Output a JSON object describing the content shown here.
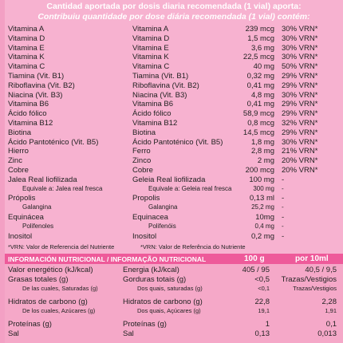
{
  "header": {
    "es": "Cantidad aportada por dosis diaria recomendada (1 vial) aporta:",
    "pt": "Contribuiu quantidade por dose diária recomendada (1 vial) contém:"
  },
  "vitamins": [
    {
      "es": "Vitamina A",
      "pt": "Vitamina A",
      "qty": "239 mcg",
      "pct": "30% VRN*"
    },
    {
      "es": "Vitamina D",
      "pt": "Vitamina D",
      "qty": "1,5 mcg",
      "pct": "30% VRN*"
    },
    {
      "es": "Vitamina E",
      "pt": "Vitamina E",
      "qty": "3,6 mg",
      "pct": "30% VRN*"
    },
    {
      "es": "Vitamina K",
      "pt": "Vitamina K",
      "qty": "22,5 mcg",
      "pct": "30% VRN*"
    },
    {
      "es": "Vitamina C",
      "pt": "Vitamina C",
      "qty": "40 mg",
      "pct": "50% VRN*"
    },
    {
      "es": "Tiamina (Vit. B1)",
      "pt": "Tiamina (Vit. B1)",
      "qty": "0,32 mg",
      "pct": "29% VRN*"
    },
    {
      "es": "Riboflavina (Vit. B2)",
      "pt": "Riboflavina (Vit. B2)",
      "qty": "0,41 mg",
      "pct": "29% VRN*"
    },
    {
      "es": "Niacina (Vit. B3)",
      "pt": "Niacina (Vit. B3)",
      "qty": "4,8 mg",
      "pct": "30% VRN*"
    },
    {
      "es": "Vitamina B6",
      "pt": "Vitamina B6",
      "qty": "0,41 mg",
      "pct": "29% VRN*"
    },
    {
      "es": "Ácido fólico",
      "pt": "Ácido fólico",
      "qty": "58,9 mcg",
      "pct": "29% VRN*"
    },
    {
      "es": "Vitamina B12",
      "pt": "Vitamina B12",
      "qty": "0,8 mcg",
      "pct": "32% VRN*"
    },
    {
      "es": "Biotina",
      "pt": "Biotina",
      "qty": "14,5 mcg",
      "pct": "29% VRN*"
    },
    {
      "es": "Ácido Pantoténico (Vit. B5)",
      "pt": "Ácido Pantoténico (Vit. B5)",
      "qty": "1,8 mg",
      "pct": "30% VRN*"
    },
    {
      "es": "Hierro",
      "pt": "Ferro",
      "qty": "2,8 mg",
      "pct": "21% VRN*"
    },
    {
      "es": "Zinc",
      "pt": "Zinco",
      "qty": "2 mg",
      "pct": "20% VRN*"
    },
    {
      "es": "Cobre",
      "pt": "Cobre",
      "qty": "200 mcg",
      "pct": "20% VRN*"
    },
    {
      "es": "Jalea Real liofilizada",
      "pt": "Geleia Real liofilizada",
      "qty": "100 mg",
      "pct": "-"
    },
    {
      "es": "Equivale a: Jalea real fresca",
      "pt": "Equivale a: Geleia real fresca",
      "qty": "300 mg",
      "pct": "-",
      "sub": true
    },
    {
      "es": "Própolis",
      "pt": "Propolis",
      "qty": "0,13 ml",
      "pct": "-"
    },
    {
      "es": "Galangina",
      "pt": "Galangina",
      "qty": "25,2 mg",
      "pct": "-",
      "sub": true
    },
    {
      "es": "Equinácea",
      "pt": "Equinacea",
      "qty": "10mg",
      "pct": "-"
    },
    {
      "es": "Polifenoles",
      "pt": "Polifenóis",
      "qty": "0,4 mg",
      "pct": "-",
      "sub": true
    },
    {
      "es": "Inositol",
      "pt": "Inositol",
      "qty": "0,2 mg",
      "pct": "-"
    }
  ],
  "footnote": {
    "es": "*VRN: Valor de Referencia del Nutriente",
    "pt": "*VRN: Valor de Referência do Nutriente"
  },
  "nutrition": {
    "title": "INFORMACIÓN NUTRICIONAL / INFORMAÇÃO NUTRICIONAL",
    "col_100g": "100 g",
    "col_10ml": "por 10ml",
    "rows": [
      {
        "es": "Valor energético (kJ/kcal)",
        "pt": "Energia (kJ/kcal)",
        "v100": "405 / 95",
        "v10": "40,5 / 9,5"
      },
      {
        "es": "Grasas totales (g)",
        "pt": "Gorduras totais (g)",
        "v100": "<0,5",
        "v10": "Trazas/Vestigios"
      },
      {
        "es": "De las cuales, Saturadas (g)",
        "pt": "Dos quais, saturadas (g)",
        "v100": "<0,1",
        "v10": "Trazas/Vestigios",
        "sub": true
      },
      {
        "es": "Hidratos de carbono (g)",
        "pt": "Hidratos de carbono (g)",
        "v100": "22,8",
        "v10": "2,28"
      },
      {
        "es": "De los cuales, Azúcares (g)",
        "pt": "Dos quais, Açúcares (g)",
        "v100": "19,1",
        "v10": "1,91",
        "sub": true
      },
      {
        "es": "Proteínas (g)",
        "pt": "Proteínas (g)",
        "v100": "1",
        "v10": "0,1"
      },
      {
        "es": "Sal",
        "pt": "Sal",
        "v100": "0,13",
        "v10": "0,013"
      }
    ]
  }
}
